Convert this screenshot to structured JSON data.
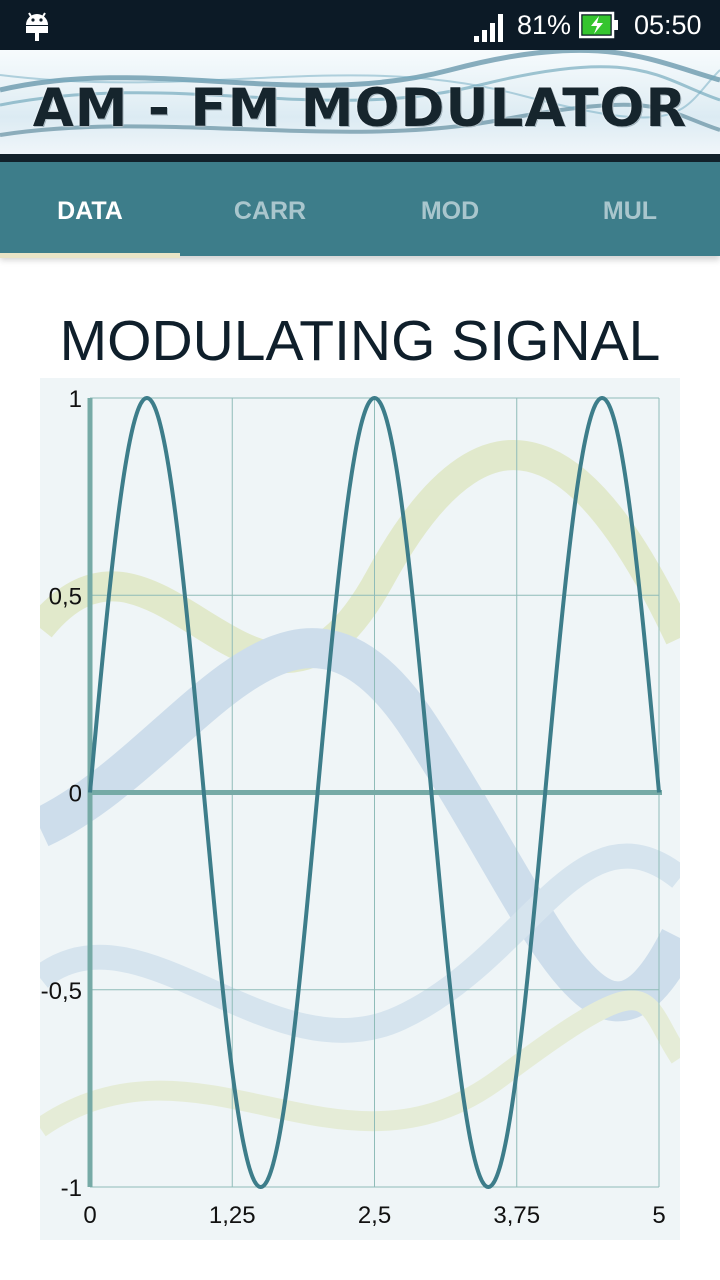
{
  "status_bar": {
    "notification_icon": "android-debug-icon",
    "signal_icon": "cell-signal-icon",
    "battery_percent": "81%",
    "battery_icon": "battery-charging-icon",
    "time": "05:50"
  },
  "banner": {
    "title": "AM - FM MODULATOR"
  },
  "tabs": [
    {
      "label": "DATA",
      "active": true
    },
    {
      "label": "CARR",
      "active": false
    },
    {
      "label": "MOD",
      "active": false
    },
    {
      "label": "MUL",
      "active": false
    }
  ],
  "colors": {
    "status_bar": "#0c1a26",
    "tab_bar": "#3d7d8a",
    "tab_indicator": "#e9e4c6",
    "signal_line": "#3d7d8a",
    "axis_line": "#76aaa6",
    "grid": "#8fbcb8"
  },
  "chart_data": {
    "type": "line",
    "title": "MODULATING SIGNAL",
    "xlim": [
      0,
      5
    ],
    "ylim": [
      -1,
      1
    ],
    "x_ticks": [
      "0",
      "1,25",
      "2,5",
      "3,75",
      "5"
    ],
    "y_ticks": [
      "1",
      "0,5",
      "0",
      "-0,5",
      "-1"
    ],
    "grid": true,
    "series": [
      {
        "function": "sin(2*pi*0.5*x)",
        "frequency": 0.5,
        "amplitude": 1,
        "x_step": 0.01
      }
    ]
  }
}
